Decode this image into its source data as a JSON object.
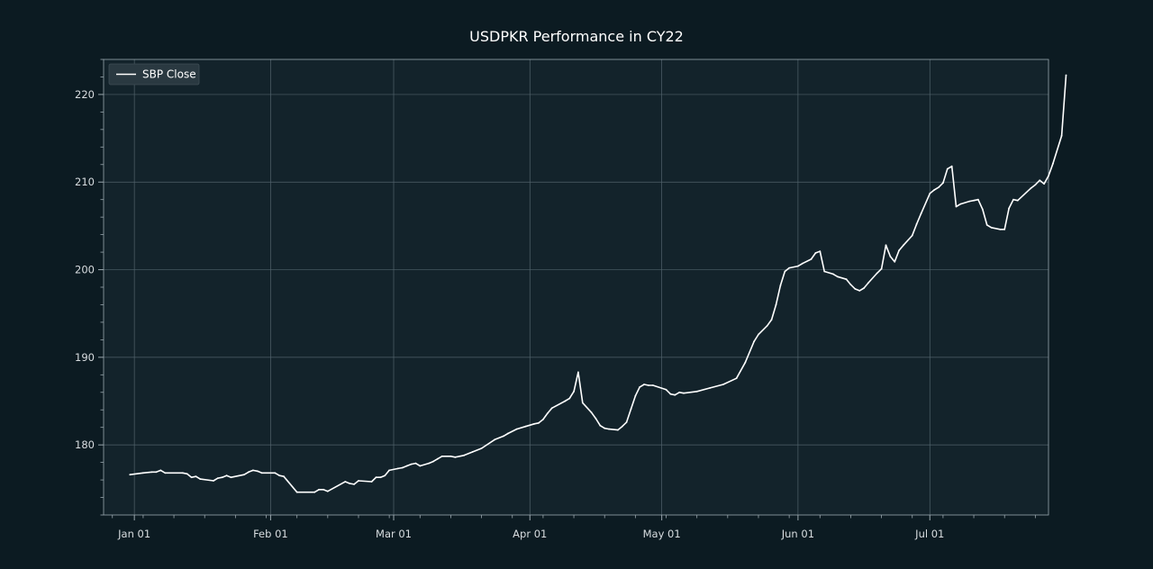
{
  "chart_data": {
    "type": "line",
    "title": "USDPKR Performance in CY22",
    "xlabel": "",
    "ylabel": "",
    "legend": {
      "placement": "top-left",
      "entries": [
        "SBP Close"
      ]
    },
    "grid": true,
    "xlim": [
      "2021-12-25",
      "2022-07-28"
    ],
    "ylim": [
      172,
      224
    ],
    "x_ticks": [
      {
        "date": "2022-01-01",
        "label": "Jan 01"
      },
      {
        "date": "2022-02-01",
        "label": "Feb 01"
      },
      {
        "date": "2022-03-01",
        "label": "Mar 01"
      },
      {
        "date": "2022-04-01",
        "label": "Apr 01"
      },
      {
        "date": "2022-05-01",
        "label": "May 01"
      },
      {
        "date": "2022-06-01",
        "label": "Jun 01"
      },
      {
        "date": "2022-07-01",
        "label": "Jul 01"
      }
    ],
    "y_ticks": [
      180,
      190,
      200,
      210,
      220
    ],
    "series": [
      {
        "name": "SBP Close",
        "color": "#ffffff",
        "points": [
          [
            "2021-12-31",
            176.6
          ],
          [
            "2022-01-03",
            176.8
          ],
          [
            "2022-01-05",
            176.9
          ],
          [
            "2022-01-06",
            176.9
          ],
          [
            "2022-01-07",
            177.1
          ],
          [
            "2022-01-08",
            176.8
          ],
          [
            "2022-01-12",
            176.8
          ],
          [
            "2022-01-13",
            176.7
          ],
          [
            "2022-01-14",
            176.3
          ],
          [
            "2022-01-15",
            176.4
          ],
          [
            "2022-01-16",
            176.1
          ],
          [
            "2022-01-19",
            175.9
          ],
          [
            "2022-01-20",
            176.2
          ],
          [
            "2022-01-21",
            176.3
          ],
          [
            "2022-01-22",
            176.5
          ],
          [
            "2022-01-23",
            176.3
          ],
          [
            "2022-01-26",
            176.6
          ],
          [
            "2022-01-27",
            176.9
          ],
          [
            "2022-01-28",
            177.1
          ],
          [
            "2022-01-29",
            177.0
          ],
          [
            "2022-01-30",
            176.8
          ],
          [
            "2022-02-02",
            176.8
          ],
          [
            "2022-02-03",
            176.5
          ],
          [
            "2022-02-04",
            176.4
          ],
          [
            "2022-02-07",
            174.6
          ],
          [
            "2022-02-11",
            174.6
          ],
          [
            "2022-02-12",
            174.9
          ],
          [
            "2022-02-13",
            174.9
          ],
          [
            "2022-02-14",
            174.7
          ],
          [
            "2022-02-18",
            175.8
          ],
          [
            "2022-02-19",
            175.6
          ],
          [
            "2022-02-20",
            175.5
          ],
          [
            "2022-02-21",
            175.9
          ],
          [
            "2022-02-24",
            175.8
          ],
          [
            "2022-02-25",
            176.3
          ],
          [
            "2022-02-26",
            176.3
          ],
          [
            "2022-02-27",
            176.5
          ],
          [
            "2022-02-28",
            177.1
          ],
          [
            "2022-03-02",
            177.3
          ],
          [
            "2022-03-03",
            177.4
          ],
          [
            "2022-03-04",
            177.6
          ],
          [
            "2022-03-05",
            177.8
          ],
          [
            "2022-03-06",
            177.9
          ],
          [
            "2022-03-07",
            177.6
          ],
          [
            "2022-03-09",
            177.9
          ],
          [
            "2022-03-10",
            178.1
          ],
          [
            "2022-03-11",
            178.4
          ],
          [
            "2022-03-12",
            178.7
          ],
          [
            "2022-03-14",
            178.7
          ],
          [
            "2022-03-15",
            178.6
          ],
          [
            "2022-03-17",
            178.8
          ],
          [
            "2022-03-19",
            179.2
          ],
          [
            "2022-03-21",
            179.6
          ],
          [
            "2022-03-24",
            180.6
          ],
          [
            "2022-03-26",
            181.0
          ],
          [
            "2022-03-27",
            181.3
          ],
          [
            "2022-03-29",
            181.8
          ],
          [
            "2022-03-31",
            182.1
          ],
          [
            "2022-04-02",
            182.4
          ],
          [
            "2022-04-03",
            182.5
          ],
          [
            "2022-04-04",
            182.9
          ],
          [
            "2022-04-05",
            183.6
          ],
          [
            "2022-04-06",
            184.2
          ],
          [
            "2022-04-09",
            185.0
          ],
          [
            "2022-04-10",
            185.3
          ],
          [
            "2022-04-11",
            186.1
          ],
          [
            "2022-04-12",
            188.3
          ],
          [
            "2022-04-13",
            184.8
          ],
          [
            "2022-04-15",
            183.7
          ],
          [
            "2022-04-16",
            183.0
          ],
          [
            "2022-04-17",
            182.2
          ],
          [
            "2022-04-18",
            181.9
          ],
          [
            "2022-04-19",
            181.8
          ],
          [
            "2022-04-21",
            181.7
          ],
          [
            "2022-04-22",
            182.1
          ],
          [
            "2022-04-23",
            182.6
          ],
          [
            "2022-04-24",
            184.1
          ],
          [
            "2022-04-25",
            185.6
          ],
          [
            "2022-04-26",
            186.6
          ],
          [
            "2022-04-27",
            186.9
          ],
          [
            "2022-04-28",
            186.8
          ],
          [
            "2022-04-29",
            186.8
          ],
          [
            "2022-05-02",
            186.3
          ],
          [
            "2022-05-03",
            185.8
          ],
          [
            "2022-05-04",
            185.7
          ],
          [
            "2022-05-05",
            186.0
          ],
          [
            "2022-05-06",
            185.9
          ],
          [
            "2022-05-09",
            186.1
          ],
          [
            "2022-05-12",
            186.5
          ],
          [
            "2022-05-15",
            186.9
          ],
          [
            "2022-05-18",
            187.6
          ],
          [
            "2022-05-20",
            189.4
          ],
          [
            "2022-05-22",
            191.8
          ],
          [
            "2022-05-23",
            192.6
          ],
          [
            "2022-05-25",
            193.6
          ],
          [
            "2022-05-26",
            194.3
          ],
          [
            "2022-05-27",
            196.0
          ],
          [
            "2022-05-28",
            198.2
          ],
          [
            "2022-05-29",
            199.8
          ],
          [
            "2022-05-30",
            200.2
          ],
          [
            "2022-06-01",
            200.4
          ],
          [
            "2022-06-02",
            200.7
          ],
          [
            "2022-06-04",
            201.2
          ],
          [
            "2022-06-05",
            201.9
          ],
          [
            "2022-06-06",
            202.1
          ],
          [
            "2022-06-07",
            199.8
          ],
          [
            "2022-06-09",
            199.5
          ],
          [
            "2022-06-10",
            199.2
          ],
          [
            "2022-06-12",
            198.9
          ],
          [
            "2022-06-13",
            198.3
          ],
          [
            "2022-06-14",
            197.8
          ],
          [
            "2022-06-15",
            197.6
          ],
          [
            "2022-06-16",
            197.9
          ],
          [
            "2022-06-17",
            198.5
          ],
          [
            "2022-06-19",
            199.6
          ],
          [
            "2022-06-20",
            200.1
          ],
          [
            "2022-06-21",
            202.8
          ],
          [
            "2022-06-22",
            201.5
          ],
          [
            "2022-06-23",
            200.9
          ],
          [
            "2022-06-24",
            202.2
          ],
          [
            "2022-06-25",
            202.8
          ],
          [
            "2022-06-27",
            203.9
          ],
          [
            "2022-06-28",
            205.2
          ],
          [
            "2022-06-29",
            206.4
          ],
          [
            "2022-07-01",
            208.7
          ],
          [
            "2022-07-02",
            209.1
          ],
          [
            "2022-07-03",
            209.4
          ],
          [
            "2022-07-04",
            209.9
          ],
          [
            "2022-07-05",
            211.5
          ],
          [
            "2022-07-06",
            211.8
          ],
          [
            "2022-07-07",
            207.2
          ],
          [
            "2022-07-08",
            207.5
          ],
          [
            "2022-07-10",
            207.8
          ],
          [
            "2022-07-11",
            207.9
          ],
          [
            "2022-07-12",
            208.0
          ],
          [
            "2022-07-13",
            206.9
          ],
          [
            "2022-07-14",
            205.1
          ],
          [
            "2022-07-15",
            204.8
          ],
          [
            "2022-07-17",
            204.6
          ],
          [
            "2022-07-18",
            204.6
          ],
          [
            "2022-07-19",
            207.0
          ],
          [
            "2022-07-20",
            208.0
          ],
          [
            "2022-07-21",
            207.9
          ],
          [
            "2022-07-24",
            209.3
          ],
          [
            "2022-07-25",
            209.7
          ],
          [
            "2022-07-26",
            210.2
          ],
          [
            "2022-07-27",
            209.8
          ],
          [
            "2022-07-28",
            210.7
          ],
          [
            "2022-07-29",
            212.1
          ],
          [
            "2022-07-31",
            215.3
          ],
          [
            "2022-08-01",
            222.2
          ]
        ]
      }
    ]
  },
  "colors": {
    "background": "#0c1b22",
    "plot_background": "#13232b",
    "grid": "#51626b",
    "axis": "#9aa7ae",
    "line": "#ffffff"
  }
}
